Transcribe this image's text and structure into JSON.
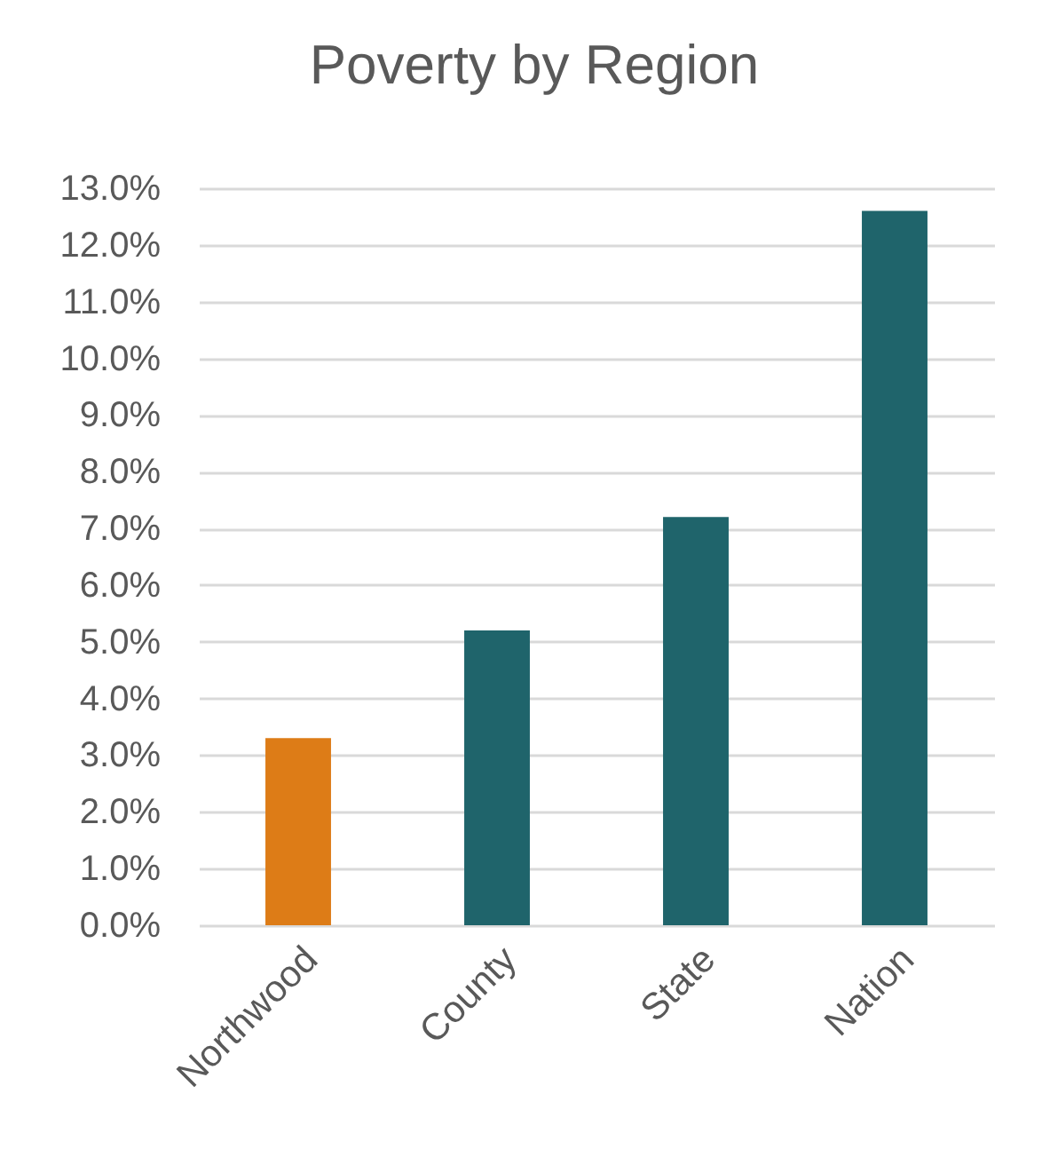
{
  "chart_data": {
    "type": "bar",
    "title": "Poverty by Region",
    "categories": [
      "Northwood",
      "County",
      "State",
      "Nation"
    ],
    "values": [
      3.3,
      5.2,
      7.2,
      12.6
    ],
    "colors": [
      "#dd7c17",
      "#1f646b",
      "#1f646b",
      "#1f646b"
    ],
    "ylim": [
      0,
      13
    ],
    "yticks": [
      {
        "value": 0,
        "label": "0.0%"
      },
      {
        "value": 1,
        "label": "1.0%"
      },
      {
        "value": 2,
        "label": "2.0%"
      },
      {
        "value": 3,
        "label": "3.0%"
      },
      {
        "value": 4,
        "label": "4.0%"
      },
      {
        "value": 5,
        "label": "5.0%"
      },
      {
        "value": 6,
        "label": "6.0%"
      },
      {
        "value": 7,
        "label": "7.0%"
      },
      {
        "value": 8,
        "label": "8.0%"
      },
      {
        "value": 9,
        "label": "9.0%"
      },
      {
        "value": 10,
        "label": "10.0%"
      },
      {
        "value": 11,
        "label": "11.0%"
      },
      {
        "value": 12,
        "label": "12.0%"
      },
      {
        "value": 13,
        "label": "13.0%"
      }
    ],
    "grid": "y"
  }
}
